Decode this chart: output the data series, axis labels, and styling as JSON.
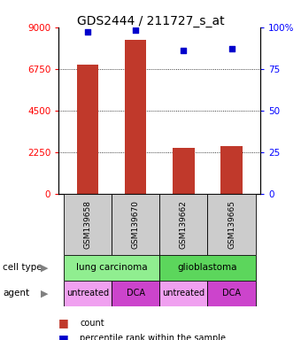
{
  "title": "GDS2444 / 211727_s_at",
  "samples": [
    "GSM139658",
    "GSM139670",
    "GSM139662",
    "GSM139665"
  ],
  "counts": [
    7000,
    8300,
    2500,
    2600
  ],
  "percentiles": [
    97,
    98,
    86,
    87
  ],
  "ylim_left": [
    0,
    9000
  ],
  "ylim_right": [
    0,
    100
  ],
  "yticks_left": [
    0,
    2250,
    4500,
    6750,
    9000
  ],
  "yticks_right": [
    0,
    25,
    50,
    75,
    100
  ],
  "ytick_labels_left": [
    "0",
    "2250",
    "4500",
    "6750",
    "9000"
  ],
  "ytick_labels_right": [
    "0",
    "25",
    "50",
    "75",
    "100%"
  ],
  "bar_color": "#c0392b",
  "dot_color": "#0000cc",
  "cell_types": [
    [
      "lung carcinoma",
      2
    ],
    [
      "glioblastoma",
      2
    ]
  ],
  "cell_type_color_1": "#90EE90",
  "cell_type_color_2": "#5CD65C",
  "agents": [
    "untreated",
    "DCA",
    "untreated",
    "DCA"
  ],
  "agent_color_light": "#F0A0F0",
  "agent_color_dark": "#CC44CC",
  "sample_box_color": "#cccccc",
  "legend_count_color": "#c0392b",
  "legend_dot_color": "#0000cc",
  "title_fontsize": 10,
  "tick_fontsize": 7.5
}
